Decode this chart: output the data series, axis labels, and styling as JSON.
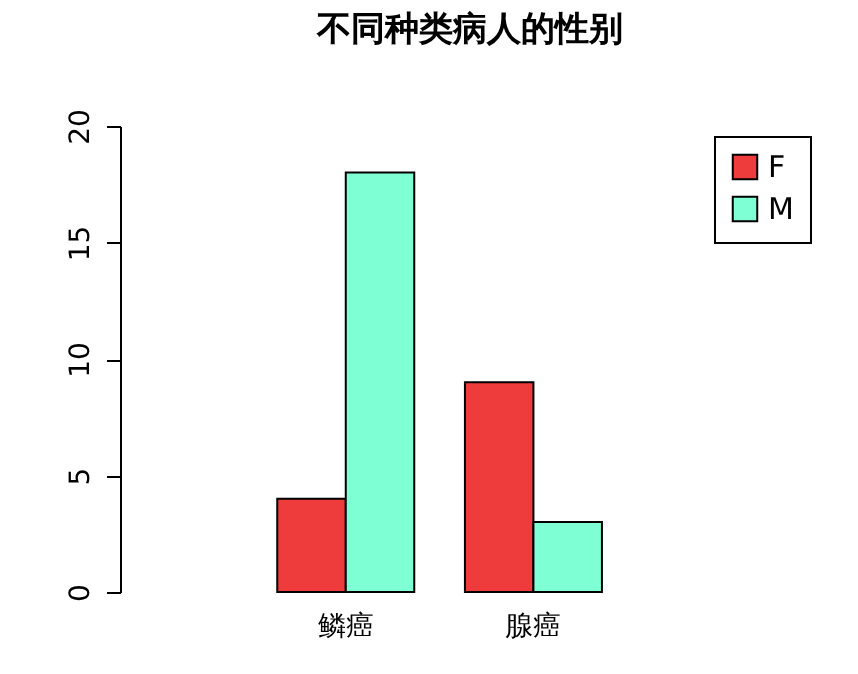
{
  "chart_data": {
    "type": "bar",
    "title": "不同种类病人的性别",
    "categories": [
      "鳞癌",
      "腺癌"
    ],
    "series": [
      {
        "name": "F",
        "color": "#ee3b3b",
        "values": [
          4,
          9
        ]
      },
      {
        "name": "M",
        "color": "#7fffd4",
        "values": [
          18,
          3
        ]
      }
    ],
    "ylim": [
      0,
      20
    ],
    "yticks": [
      0,
      5,
      10,
      15,
      20
    ],
    "grid": false,
    "legend": "top right"
  }
}
